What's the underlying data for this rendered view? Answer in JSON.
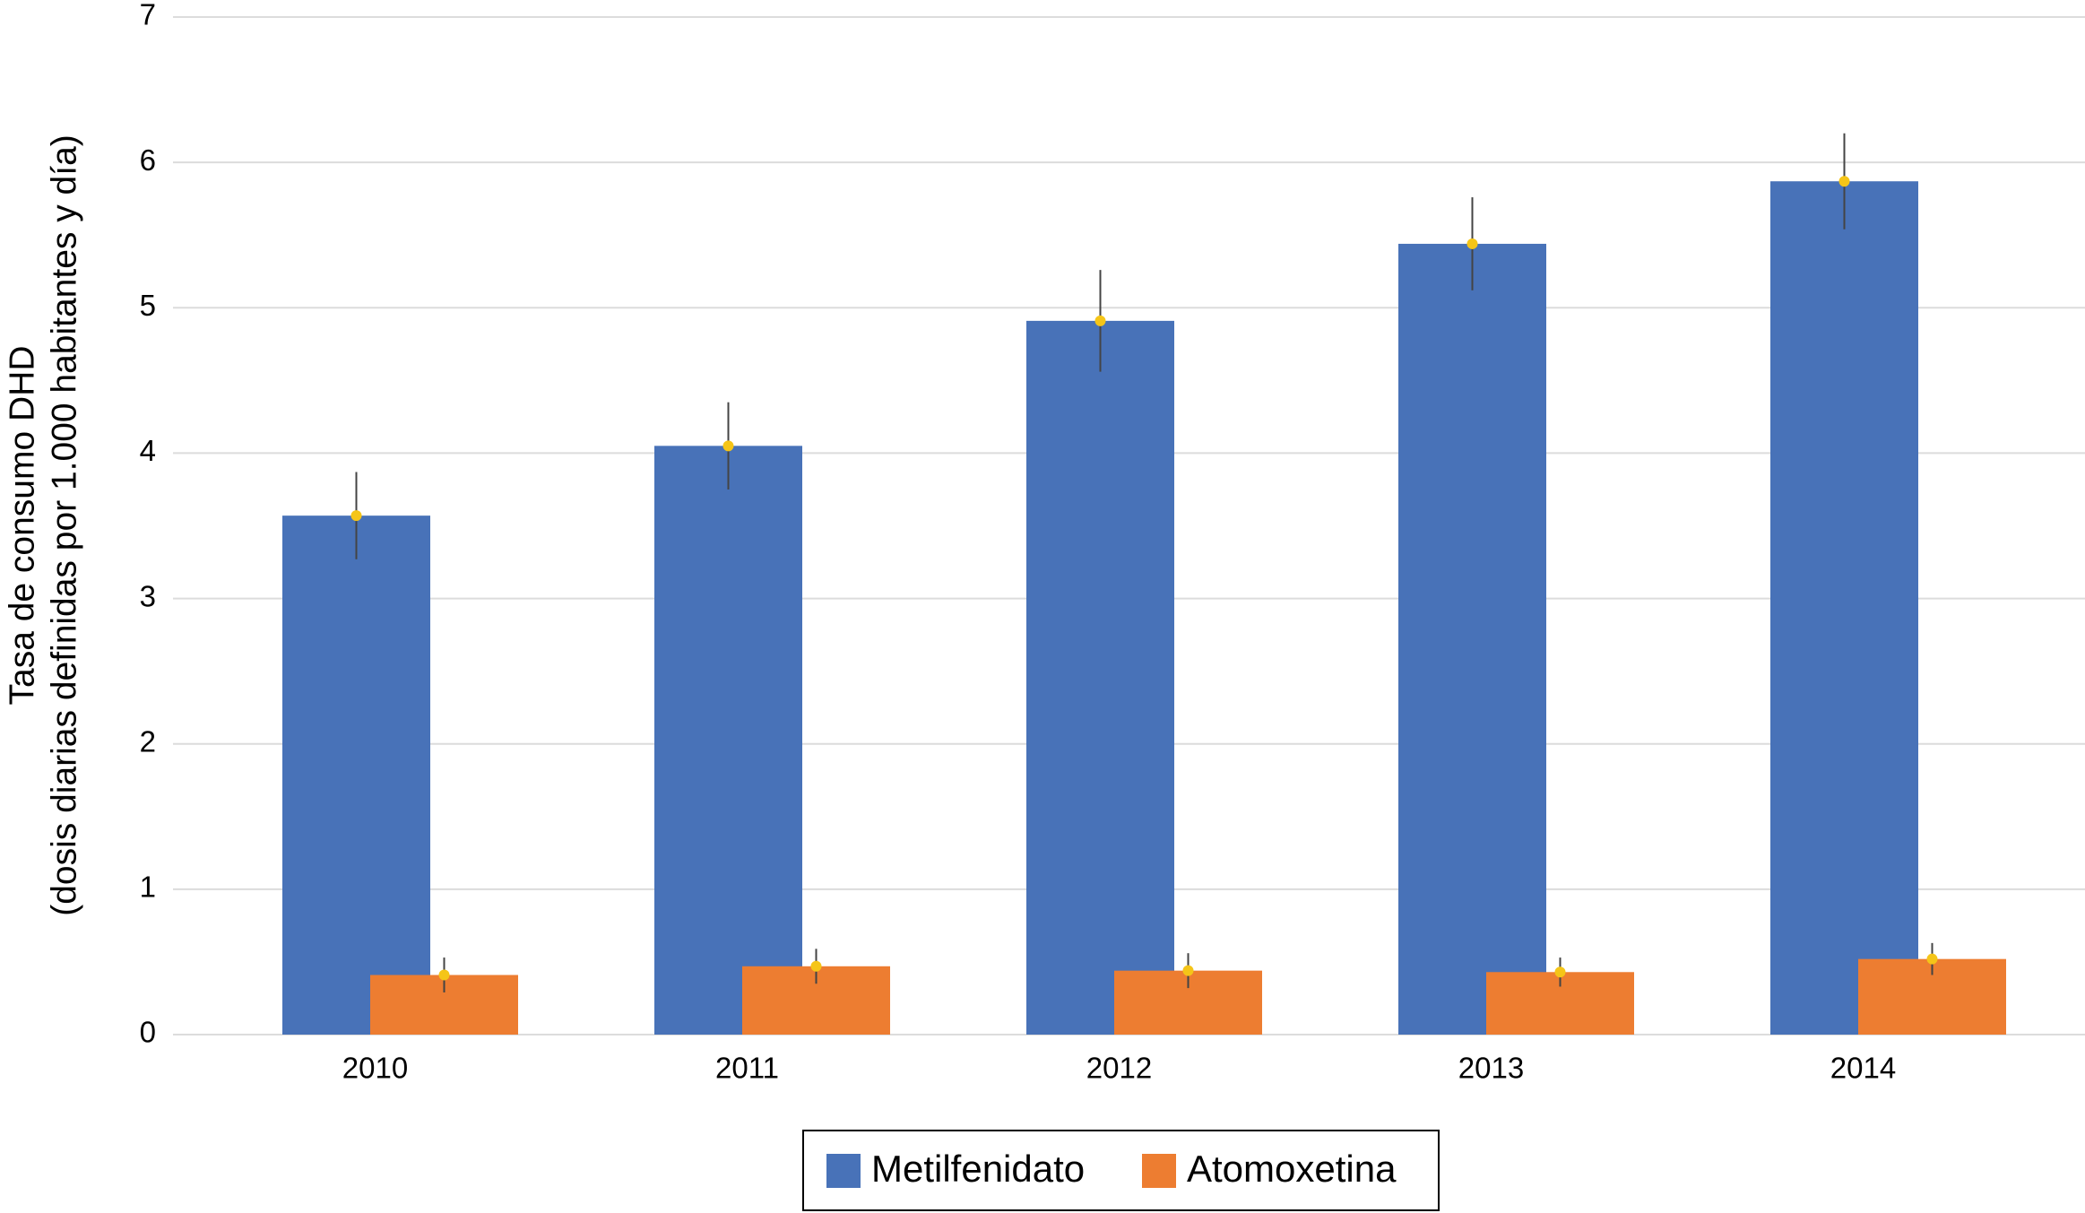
{
  "chart_data": {
    "type": "bar",
    "y_label": [
      "Tasa de consumo DHD",
      "(dosis diarias definidas por 1.000 habitantes y día)"
    ],
    "categories": [
      "2010",
      "2011",
      "2012",
      "2013",
      "2014"
    ],
    "series": [
      {
        "name": "Metilfenidato",
        "color": "#4872b8",
        "values": [
          3.57,
          4.05,
          4.91,
          5.44,
          5.87
        ],
        "errors": [
          0.3,
          0.3,
          0.35,
          0.32,
          0.33
        ]
      },
      {
        "name": "Atomoxetina",
        "color": "#ed7d31",
        "values": [
          0.41,
          0.47,
          0.44,
          0.43,
          0.52
        ],
        "errors": [
          0.12,
          0.12,
          0.12,
          0.1,
          0.11
        ]
      }
    ],
    "ylim": [
      0,
      7
    ],
    "yticks": [
      0,
      1,
      2,
      3,
      4,
      5,
      6,
      7
    ],
    "grid": true,
    "legend": "bottom"
  }
}
